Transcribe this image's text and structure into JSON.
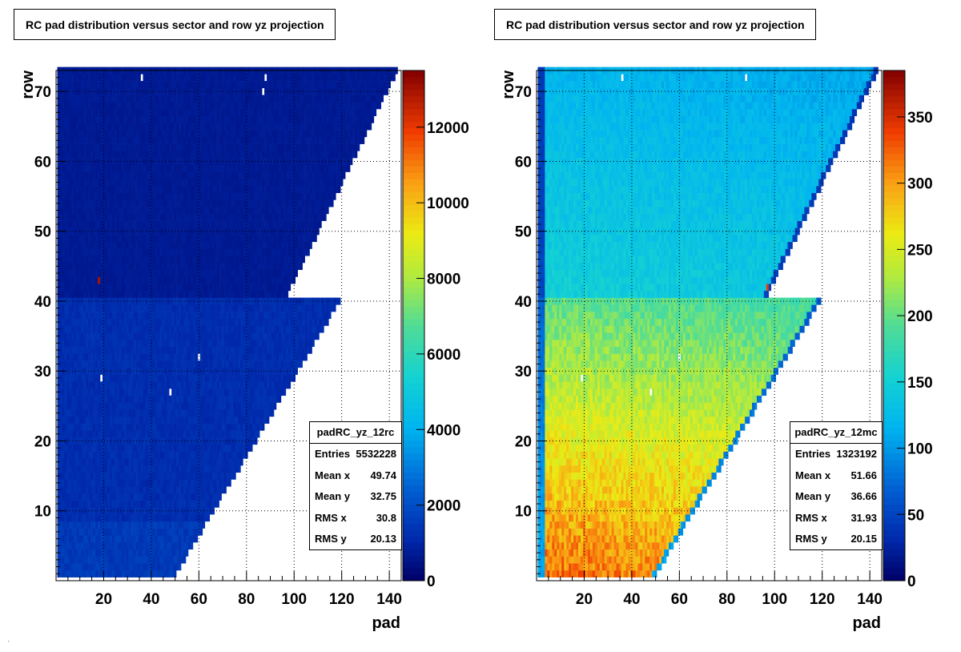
{
  "chart_data": [
    {
      "type": "heatmap",
      "title": "RC pad distribution versus sector and row yz projection",
      "xlabel": "pad",
      "ylabel": "row",
      "xlim": [
        0,
        145
      ],
      "ylim": [
        0,
        73
      ],
      "zlim": [
        0,
        13500
      ],
      "x_ticks": [
        20,
        40,
        60,
        80,
        100,
        120,
        140
      ],
      "y_ticks": [
        10,
        20,
        30,
        40,
        50,
        60,
        70
      ],
      "z_ticks": [
        0,
        2000,
        4000,
        6000,
        8000,
        10000,
        12000
      ],
      "grid": true,
      "stats": {
        "name": "padRC_yz_12rc",
        "rows": [
          {
            "label": "Entries",
            "value": "5532228"
          },
          {
            "label": "Mean x",
            "value": "49.74"
          },
          {
            "label": "Mean y",
            "value": "32.75"
          },
          {
            "label": "RMS x",
            "value": "30.8"
          },
          {
            "label": "RMS y",
            "value": "20.13"
          }
        ]
      },
      "coverage": {
        "pad_min": 1,
        "row_max": 73,
        "outer_pad_row40": 119,
        "outer_pad_row1": 50,
        "outer_pad_row41": 97,
        "outer_pad_row73": 143
      },
      "level": {
        "inner_low": 1200,
        "outer_high": 700
      },
      "hot_cells": [
        {
          "pad": 18,
          "row": 43,
          "value": 13000
        }
      ],
      "empty_cells": [
        {
          "pad": 36,
          "row": 72
        },
        {
          "pad": 88,
          "row": 72
        },
        {
          "pad": 87,
          "row": 70
        },
        {
          "pad": 60,
          "row": 32
        },
        {
          "pad": 19,
          "row": 29
        },
        {
          "pad": 48,
          "row": 27
        }
      ]
    },
    {
      "type": "heatmap",
      "title": "RC pad distribution versus sector and row yz projection",
      "xlabel": "pad",
      "ylabel": "row",
      "xlim": [
        0,
        145
      ],
      "ylim": [
        0,
        73
      ],
      "zlim": [
        0,
        385
      ],
      "x_ticks": [
        20,
        40,
        60,
        80,
        100,
        120,
        140
      ],
      "y_ticks": [
        10,
        20,
        30,
        40,
        50,
        60,
        70
      ],
      "z_ticks": [
        0,
        50,
        100,
        150,
        200,
        250,
        300,
        350
      ],
      "grid": true,
      "stats": {
        "name": "padRC_yz_12mc",
        "rows": [
          {
            "label": "Entries",
            "value": "1323192"
          },
          {
            "label": "Mean x",
            "value": "51.66"
          },
          {
            "label": "Mean y",
            "value": "36.66"
          },
          {
            "label": "RMS x",
            "value": "31.93"
          },
          {
            "label": "RMS y",
            "value": "20.15"
          }
        ]
      },
      "coverage": {
        "pad_min": 1,
        "row_max": 73,
        "outer_pad_row40": 119,
        "outer_pad_row1": 50,
        "outer_pad_row41": 97,
        "outer_pad_row73": 143
      },
      "level": {
        "row1_low": 320,
        "row40_low": 200,
        "row41_high": 150,
        "row73_high": 120
      },
      "hot_cells": [
        {
          "pad": 97,
          "row": 42,
          "value": 340
        }
      ],
      "empty_cells": [
        {
          "pad": 36,
          "row": 72
        },
        {
          "pad": 88,
          "row": 72
        },
        {
          "pad": 60,
          "row": 32
        },
        {
          "pad": 19,
          "row": 29
        },
        {
          "pad": 48,
          "row": 27
        }
      ]
    }
  ]
}
